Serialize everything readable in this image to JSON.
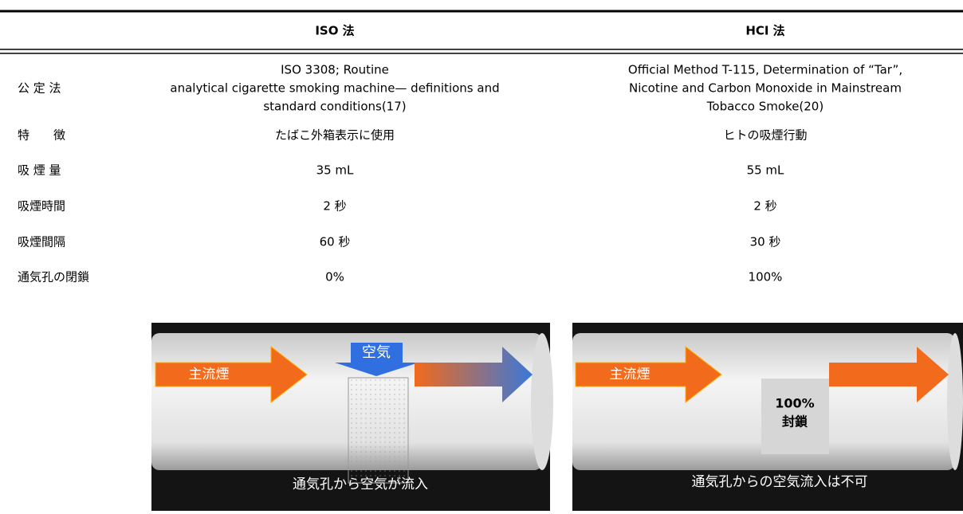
{
  "table": {
    "columns": [
      "ISO 法",
      "HCI 法"
    ],
    "rows": [
      {
        "label": "公 定 法",
        "cells": [
          [
            "ISO 3308; Routine",
            "analytical cigarette smoking machine— definitions and",
            "standard conditions(17)"
          ],
          [
            "Official Method T-115, Determination of “Tar”,",
            "Nicotine and Carbon Monoxide in Mainstream",
            "Tobacco Smoke(20)"
          ]
        ]
      },
      {
        "label": "特　　徴",
        "cells": [
          [
            "たばこ外箱表示に使用"
          ],
          [
            "ヒトの吸煙行動"
          ]
        ]
      },
      {
        "label": "吸 煙 量",
        "cells": [
          [
            "35 mL"
          ],
          [
            "55 mL"
          ]
        ]
      },
      {
        "label": "吸煙時間",
        "cells": [
          [
            "2 秒"
          ],
          [
            "2 秒"
          ]
        ]
      },
      {
        "label": "吸煙間隔",
        "cells": [
          [
            "60 秒"
          ],
          [
            "30 秒"
          ]
        ]
      },
      {
        "label": "通気孔の閉鎖",
        "cells": [
          [
            "0%"
          ],
          [
            "100%"
          ]
        ]
      }
    ]
  },
  "figures": [
    {
      "air": "空気",
      "arrow": "主流煙",
      "caption": "通気孔から空気が流入"
    },
    {
      "arrow": "主流煙",
      "seal": [
        "100%",
        "封鎖"
      ],
      "caption": "通気孔からの空気流入は不可"
    }
  ]
}
